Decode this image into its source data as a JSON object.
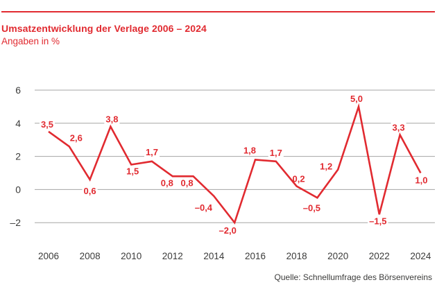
{
  "header": {
    "title": "Umsatzentwicklung der Verlage 2006 – 2024",
    "subtitle": "Angaben in %"
  },
  "source": {
    "label": "Quelle: Schnellumfrage des Börsenvereins"
  },
  "colors": {
    "accent_red": "#e12a30",
    "grid_gray": "#a5a5a4",
    "axis_text": "#3b3b3a",
    "background": "#ffffff"
  },
  "chart_data": {
    "type": "line",
    "title": "Umsatzentwicklung der Verlage 2006 – 2024",
    "subtitle_unit": "Angaben in %",
    "x": [
      2006,
      2007,
      2008,
      2009,
      2010,
      2011,
      2012,
      2013,
      2014,
      2015,
      2016,
      2017,
      2018,
      2019,
      2020,
      2021,
      2022,
      2023,
      2024
    ],
    "values": [
      3.5,
      2.6,
      0.6,
      3.8,
      1.5,
      1.7,
      0.8,
      0.8,
      -0.4,
      -2.0,
      1.8,
      1.7,
      0.2,
      -0.5,
      1.2,
      5.0,
      -1.5,
      3.3,
      1.0
    ],
    "point_labels": [
      "3,5",
      "2,6",
      "0,6",
      "3,8",
      "1,5",
      "1,7",
      "0,8",
      "0,8",
      "–0,4",
      "–2,0",
      "1,8",
      "1,7",
      "0,2",
      "–0,5",
      "1,2",
      "5,0",
      "–1,5",
      "3,3",
      "1,0"
    ],
    "y_ticks": [
      6,
      4,
      2,
      0,
      -2
    ],
    "y_tick_labels": [
      "6",
      "4",
      "2",
      "0",
      "–2"
    ],
    "x_tick_years": [
      2006,
      2008,
      2010,
      2012,
      2014,
      2016,
      2018,
      2020,
      2022,
      2024
    ],
    "ylim": [
      -3.0,
      6.7
    ],
    "xlabel": "",
    "ylabel": "Angaben in %",
    "grid": true,
    "legend": false,
    "line_color": "#e12a30",
    "source": "Quelle: Schnellumfrage des Börsenvereins"
  }
}
